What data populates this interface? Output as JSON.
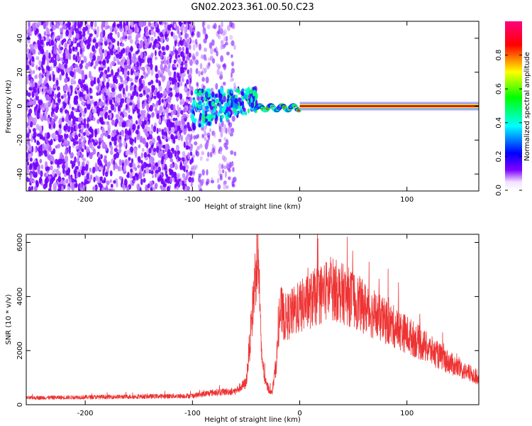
{
  "title": "GN02.2023.361.00.50.C23",
  "chart_data": [
    {
      "type": "heatmap",
      "xlabel": "Height of straight line (km)",
      "ylabel": "Frequency (Hz)",
      "xlim": [
        -255,
        167
      ],
      "ylim": [
        -50,
        50
      ],
      "x_ticks": [
        -200,
        -100,
        0,
        100
      ],
      "y_ticks": [
        -40,
        -20,
        0,
        20,
        40
      ],
      "colorbar": {
        "label": "Normalized spectral amplitude",
        "range": [
          0,
          1
        ],
        "ticks": [
          0.0,
          0.2,
          0.4,
          0.6,
          0.8
        ],
        "colormap": [
          "#ffffff",
          "#8000ff",
          "#0000ff",
          "#00ffff",
          "#00ff00",
          "#ffff00",
          "#ff0000",
          "#ff0080"
        ]
      },
      "regions": [
        {
          "x": [
            -255,
            -100
          ],
          "f": [
            -50,
            50
          ],
          "amplitude": [
            0.0,
            0.1
          ],
          "pattern": "broadband noise"
        },
        {
          "x": [
            -100,
            -60
          ],
          "f": [
            -50,
            50
          ],
          "amplitude": [
            0.0,
            0.05
          ],
          "pattern": "fading noise"
        },
        {
          "x": [
            -100,
            -40
          ],
          "f": [
            -10,
            12
          ],
          "amplitude": [
            0.1,
            0.5
          ],
          "pattern": "rising broadband burst"
        },
        {
          "x": [
            -40,
            0
          ],
          "f": [
            -3,
            3
          ],
          "amplitude": [
            0.3,
            1.0
          ],
          "pattern": "narrow tone, wobbling"
        },
        {
          "x": [
            0,
            167
          ],
          "f": [
            -1,
            1
          ],
          "amplitude": [
            0.9,
            1.0
          ],
          "pattern": "steady narrow tone near 0 Hz"
        }
      ]
    },
    {
      "type": "line",
      "xlabel": "Height of straight line (km)",
      "ylabel": "SNR (10 * v/v)",
      "xlim": [
        -255,
        167
      ],
      "ylim": [
        0,
        6300
      ],
      "x_ticks": [
        -200,
        -100,
        0,
        100
      ],
      "y_ticks": [
        0,
        2000,
        4000,
        6000
      ],
      "series_color": "#ee3333",
      "envelope": [
        {
          "x": -255,
          "y": 250
        },
        {
          "x": -200,
          "y": 280
        },
        {
          "x": -150,
          "y": 300
        },
        {
          "x": -100,
          "y": 330
        },
        {
          "x": -80,
          "y": 450
        },
        {
          "x": -60,
          "y": 500
        },
        {
          "x": -50,
          "y": 800
        },
        {
          "x": -46,
          "y": 2500
        },
        {
          "x": -42,
          "y": 4500
        },
        {
          "x": -40,
          "y": 5500
        },
        {
          "x": -38,
          "y": 5000
        },
        {
          "x": -36,
          "y": 2000
        },
        {
          "x": -32,
          "y": 800
        },
        {
          "x": -26,
          "y": 400
        },
        {
          "x": -22,
          "y": 1500
        },
        {
          "x": -18,
          "y": 3500
        },
        {
          "x": -14,
          "y": 3200
        },
        {
          "x": -10,
          "y": 3300
        },
        {
          "x": 0,
          "y": 3600
        },
        {
          "x": 20,
          "y": 4100
        },
        {
          "x": 30,
          "y": 4300
        },
        {
          "x": 50,
          "y": 3900
        },
        {
          "x": 70,
          "y": 3300
        },
        {
          "x": 100,
          "y": 2600
        },
        {
          "x": 130,
          "y": 1800
        },
        {
          "x": 150,
          "y": 1300
        },
        {
          "x": 167,
          "y": 1000
        }
      ]
    }
  ]
}
